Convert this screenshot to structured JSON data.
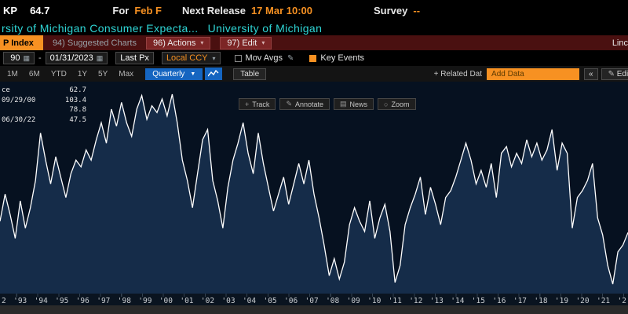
{
  "colors": {
    "amber": "#f79122",
    "cyan": "#2fd5d5",
    "menu_red": "#4a1010",
    "button_red": "#7c2525",
    "accent_blue": "#1565c0",
    "chart_background": "#061120",
    "area_fill": "#152c49",
    "line": "#ffffff"
  },
  "header": {
    "ticker": "KP",
    "price": "64.7",
    "for_label": "For",
    "for_value": "Feb F",
    "next_release_label": "Next Release",
    "next_release_value": "17 Mar 10:00",
    "survey_label": "Survey",
    "survey_value": "--",
    "security_left": "rsity of Michigan Consumer Expecta...",
    "security_right": "University of Michigan"
  },
  "menubar": {
    "tab": "P Index",
    "suggested": "94) Suggested Charts",
    "actions": "96) Actions",
    "edit": "97) Edit",
    "right_label": "Linc"
  },
  "controls": {
    "date_from": "90",
    "separator": "-",
    "date_to": "01/31/2023",
    "price_field": "Last Px",
    "currency": "Local CCY",
    "mov_avgs": "Mov Avgs",
    "key_events": "Key Events"
  },
  "toolbar": {
    "ranges": [
      "1M",
      "6M",
      "YTD",
      "1Y",
      "5Y",
      "Max"
    ],
    "frequency": "Quarterly",
    "table": "Table",
    "related_label": "+ Related Dat",
    "add_data_placeholder": "Add Data",
    "collapse": "«",
    "edit": "Edit"
  },
  "chart_tools": [
    {
      "icon": "track-icon",
      "label": "Track"
    },
    {
      "icon": "annotate-icon",
      "label": "Annotate"
    },
    {
      "icon": "news-icon",
      "label": "News"
    },
    {
      "icon": "zoom-icon",
      "label": "Zoom"
    }
  ],
  "legend": {
    "rows": [
      {
        "label": "ce",
        "value": "62.7"
      },
      {
        "label": "09/29/00",
        "value": "103.4"
      },
      {
        "label": "",
        "value": "78.8"
      },
      {
        "label": "06/30/22",
        "value": "47.5"
      }
    ]
  },
  "chart_data": {
    "type": "area",
    "title": "University of Michigan Consumer Expecta...",
    "frequency": "Quarterly",
    "x_start": "1992-Q1",
    "x_tick_labels": [
      "2",
      "'93",
      "'94",
      "'95",
      "'96",
      "'97",
      "'98",
      "'99",
      "'00",
      "'01",
      "'02",
      "'03",
      "'04",
      "'05",
      "'06",
      "'07",
      "'08",
      "'09",
      "'10",
      "'11",
      "'12",
      "'13",
      "'14",
      "'15",
      "'16",
      "'17",
      "'18",
      "'19",
      "'20",
      "'21",
      "'2"
    ],
    "values": [
      66,
      74,
      68,
      61,
      72,
      64,
      70,
      78,
      92,
      84,
      77,
      85,
      79,
      73,
      80,
      84,
      82,
      87,
      84,
      90,
      95,
      89,
      99,
      94,
      101,
      95,
      91,
      99,
      103,
      96,
      100,
      98,
      102,
      97,
      103.4,
      95,
      84,
      78,
      70,
      80,
      90,
      93,
      78,
      72,
      64,
      76,
      84,
      89,
      95,
      86,
      80,
      92,
      83,
      76,
      69,
      74,
      79,
      71,
      77,
      83,
      77,
      84,
      74,
      67,
      59,
      50,
      55,
      49,
      54,
      65,
      70,
      66,
      63,
      72,
      61,
      67,
      71,
      63,
      48,
      53,
      65,
      70,
      74,
      79,
      68,
      76,
      71,
      65,
      73,
      75,
      79,
      84,
      89,
      84,
      77,
      81,
      76,
      83,
      73,
      86,
      88,
      82,
      86,
      83,
      90,
      85,
      89,
      84,
      87,
      93,
      81,
      89,
      86,
      64,
      73,
      75,
      78,
      83,
      67,
      62,
      53,
      47.5,
      57,
      59,
      62.7
    ],
    "stats": {
      "last": 62.7,
      "high": 103.4,
      "high_date": "09/29/00",
      "average": 78.8,
      "low": 47.5,
      "low_date": "06/30/22"
    },
    "ylim": [
      45,
      106
    ],
    "grid": false,
    "legend_position": "top-left"
  }
}
